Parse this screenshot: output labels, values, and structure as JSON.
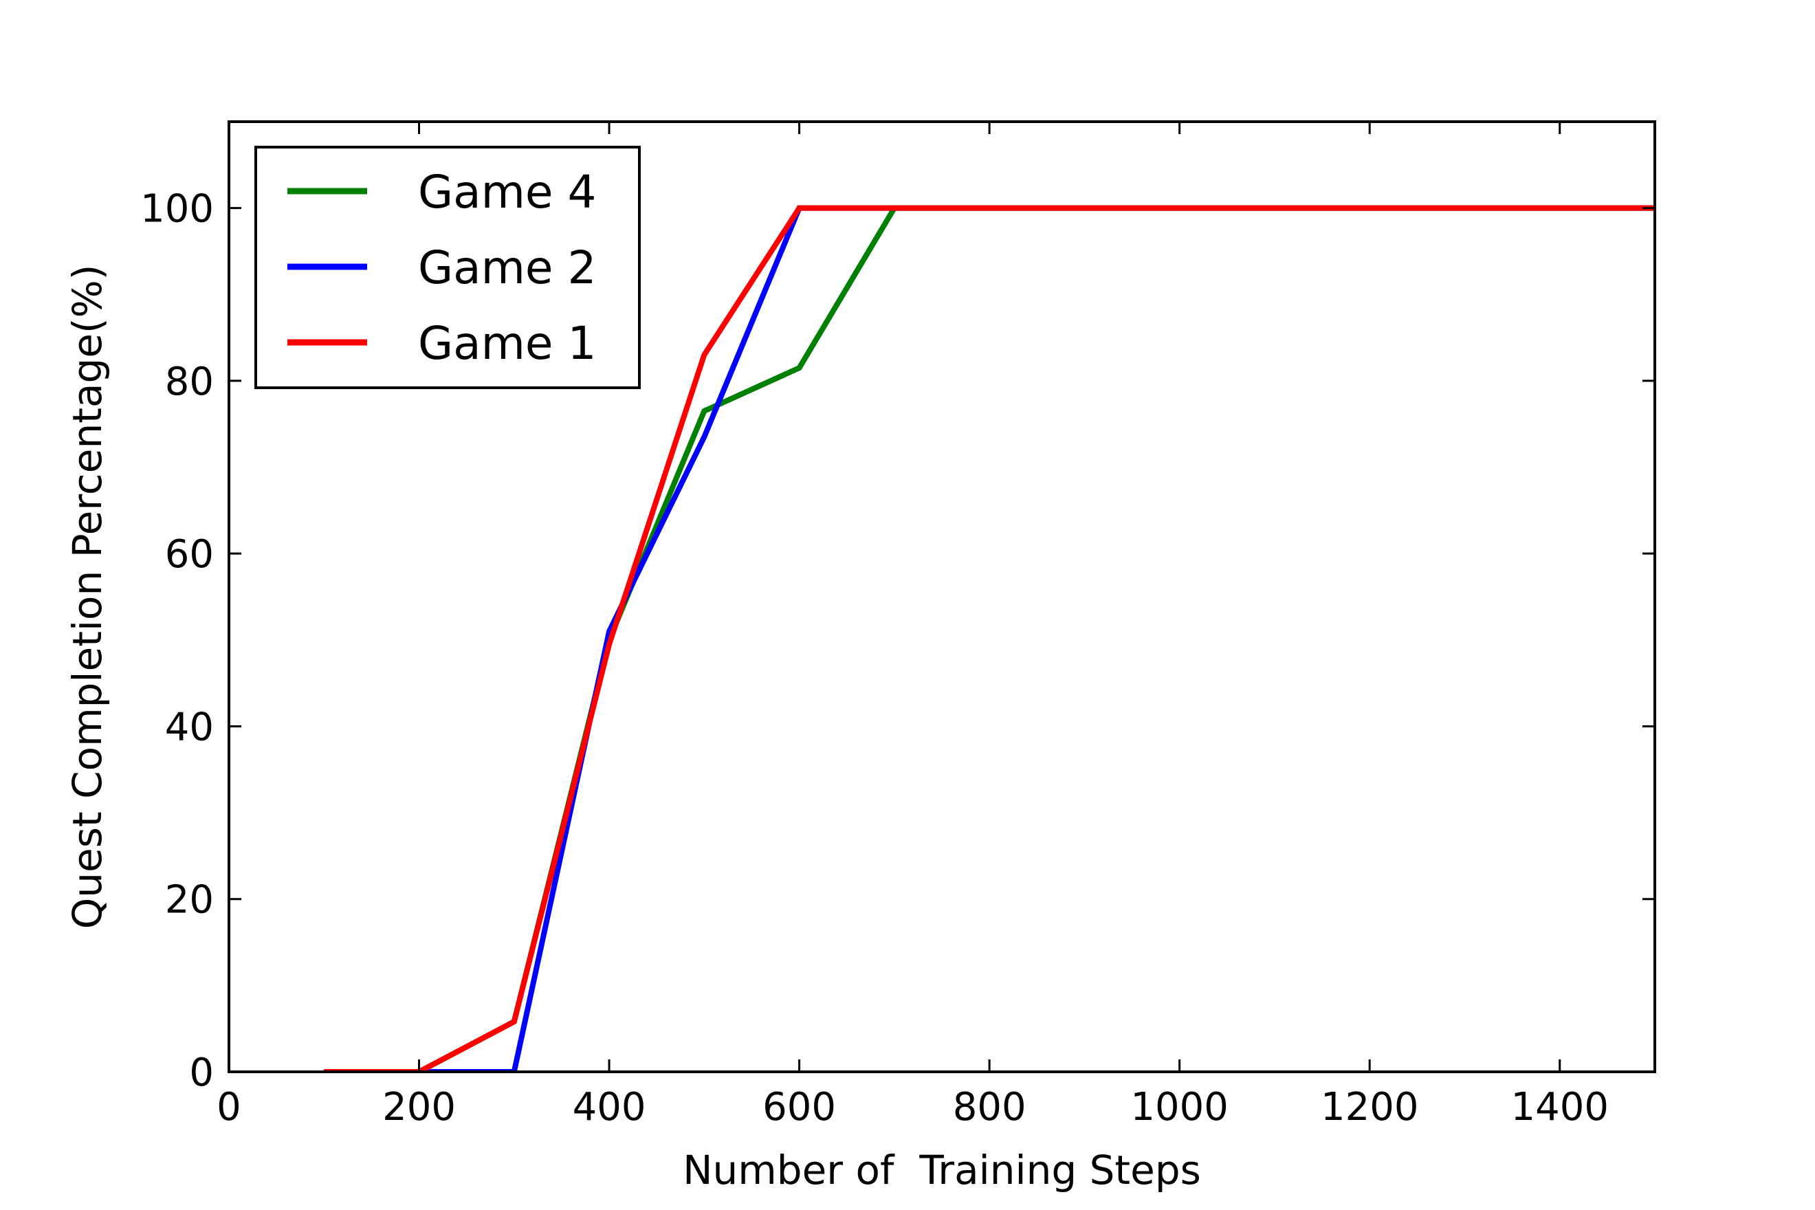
{
  "chart_data": {
    "type": "line",
    "title": "",
    "xlabel": "Number of  Training Steps",
    "ylabel": "Quest Completion Percentage(%)",
    "xlim": [
      0,
      1500
    ],
    "ylim": [
      0,
      110
    ],
    "xticks": [
      0,
      200,
      400,
      600,
      800,
      1000,
      1200,
      1400
    ],
    "yticks": [
      0,
      20,
      40,
      60,
      80,
      100
    ],
    "grid": false,
    "legend_position": "top-left",
    "series": [
      {
        "name": "Game 4",
        "color": "#008000",
        "x": [
          100,
          200,
          300,
          400,
          500,
          600,
          700,
          800,
          900,
          1000,
          1100,
          1200,
          1300,
          1400,
          1500
        ],
        "y": [
          0,
          0,
          5.8,
          50,
          76.5,
          81.5,
          100,
          100,
          100,
          100,
          100,
          100,
          100,
          100,
          100
        ]
      },
      {
        "name": "Game 2",
        "color": "#0000ff",
        "x": [
          100,
          200,
          300,
          400,
          500,
          600,
          700,
          800,
          900,
          1000,
          1100,
          1200,
          1300,
          1400,
          1500
        ],
        "y": [
          0,
          0,
          0,
          51,
          73.5,
          100,
          100,
          100,
          100,
          100,
          100,
          100,
          100,
          100,
          100
        ]
      },
      {
        "name": "Game 1",
        "color": "#ff0000",
        "x": [
          100,
          200,
          300,
          400,
          500,
          600,
          700,
          800,
          900,
          1000,
          1100,
          1200,
          1300,
          1400,
          1500
        ],
        "y": [
          0,
          0,
          5.8,
          49.5,
          83,
          100,
          100,
          100,
          100,
          100,
          100,
          100,
          100,
          100,
          100
        ]
      }
    ]
  }
}
